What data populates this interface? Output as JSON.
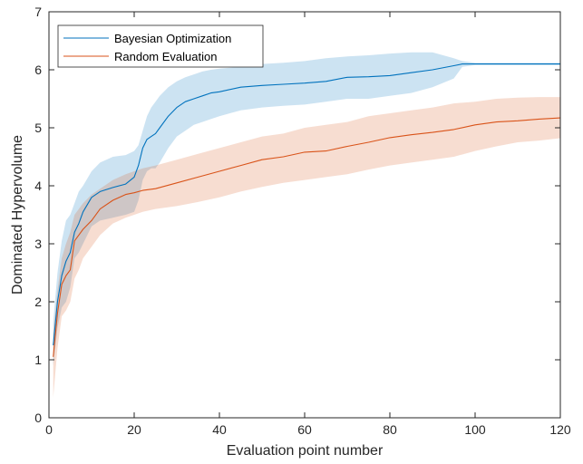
{
  "chart_data": {
    "type": "line",
    "xlabel": "Evaluation point number",
    "ylabel": "Dominated Hypervolume",
    "xlim": [
      0,
      120
    ],
    "ylim": [
      0,
      7
    ],
    "xticks": [
      0,
      20,
      40,
      60,
      80,
      100,
      120
    ],
    "yticks": [
      0,
      1,
      2,
      3,
      4,
      5,
      6,
      7
    ],
    "grid": false,
    "legend_position": "top-left",
    "series": [
      {
        "name": "Bayesian Optimization",
        "color": "#0072BD",
        "band_color": "#0072BD",
        "band_opacity": 0.2,
        "x": [
          1,
          2,
          3,
          4,
          5,
          6,
          7,
          8,
          10,
          12,
          15,
          18,
          20,
          21,
          22,
          23,
          24,
          25,
          26,
          28,
          30,
          32,
          34,
          36,
          38,
          40,
          45,
          50,
          55,
          60,
          65,
          70,
          75,
          80,
          85,
          90,
          95,
          97,
          100,
          110,
          120
        ],
        "values": [
          1.25,
          2.0,
          2.45,
          2.7,
          2.85,
          3.2,
          3.35,
          3.55,
          3.8,
          3.9,
          3.97,
          4.03,
          4.15,
          4.35,
          4.65,
          4.8,
          4.85,
          4.9,
          5.0,
          5.2,
          5.35,
          5.45,
          5.5,
          5.55,
          5.6,
          5.62,
          5.7,
          5.73,
          5.75,
          5.77,
          5.8,
          5.87,
          5.88,
          5.9,
          5.95,
          6.0,
          6.07,
          6.1,
          6.1,
          6.1,
          6.1
        ],
        "upper": [
          1.65,
          2.5,
          3.05,
          3.4,
          3.5,
          3.7,
          3.9,
          4.0,
          4.25,
          4.4,
          4.5,
          4.53,
          4.6,
          4.7,
          4.95,
          5.2,
          5.35,
          5.45,
          5.55,
          5.7,
          5.8,
          5.87,
          5.92,
          5.97,
          6.0,
          6.02,
          6.05,
          6.1,
          6.12,
          6.15,
          6.2,
          6.23,
          6.25,
          6.28,
          6.3,
          6.3,
          6.2,
          6.15,
          6.12,
          6.12,
          6.12
        ],
        "lower": [
          0.9,
          1.55,
          1.9,
          2.0,
          2.25,
          2.75,
          2.85,
          3.0,
          3.3,
          3.4,
          3.45,
          3.5,
          3.55,
          3.75,
          4.1,
          4.25,
          4.3,
          4.3,
          4.4,
          4.65,
          4.85,
          4.95,
          5.05,
          5.1,
          5.15,
          5.2,
          5.3,
          5.35,
          5.38,
          5.4,
          5.45,
          5.5,
          5.5,
          5.55,
          5.6,
          5.7,
          5.85,
          6.05,
          6.08,
          6.08,
          6.08
        ]
      },
      {
        "name": "Random Evaluation",
        "color": "#D95319",
        "band_color": "#D95319",
        "band_opacity": 0.2,
        "x": [
          1,
          2,
          3,
          4,
          5,
          6,
          7,
          8,
          10,
          12,
          15,
          18,
          20,
          22,
          25,
          30,
          35,
          40,
          45,
          50,
          55,
          60,
          65,
          70,
          75,
          80,
          85,
          90,
          95,
          100,
          105,
          110,
          115,
          120
        ],
        "values": [
          1.05,
          1.8,
          2.3,
          2.45,
          2.55,
          3.05,
          3.15,
          3.25,
          3.4,
          3.6,
          3.75,
          3.85,
          3.88,
          3.92,
          3.95,
          4.05,
          4.15,
          4.25,
          4.35,
          4.45,
          4.5,
          4.58,
          4.6,
          4.68,
          4.75,
          4.83,
          4.88,
          4.92,
          4.97,
          5.05,
          5.1,
          5.12,
          5.15,
          5.17
        ],
        "upper": [
          1.45,
          2.2,
          2.75,
          3.0,
          3.2,
          3.5,
          3.6,
          3.7,
          3.85,
          3.95,
          4.1,
          4.2,
          4.25,
          4.3,
          4.35,
          4.45,
          4.55,
          4.65,
          4.75,
          4.85,
          4.9,
          5.0,
          5.05,
          5.1,
          5.2,
          5.25,
          5.3,
          5.35,
          5.42,
          5.45,
          5.5,
          5.52,
          5.53,
          5.53
        ],
        "lower": [
          0.35,
          1.2,
          1.75,
          1.85,
          2.0,
          2.4,
          2.55,
          2.75,
          2.95,
          3.15,
          3.35,
          3.45,
          3.5,
          3.55,
          3.6,
          3.65,
          3.72,
          3.8,
          3.9,
          3.98,
          4.05,
          4.1,
          4.15,
          4.2,
          4.28,
          4.35,
          4.4,
          4.45,
          4.5,
          4.6,
          4.68,
          4.75,
          4.78,
          4.82
        ]
      }
    ]
  }
}
